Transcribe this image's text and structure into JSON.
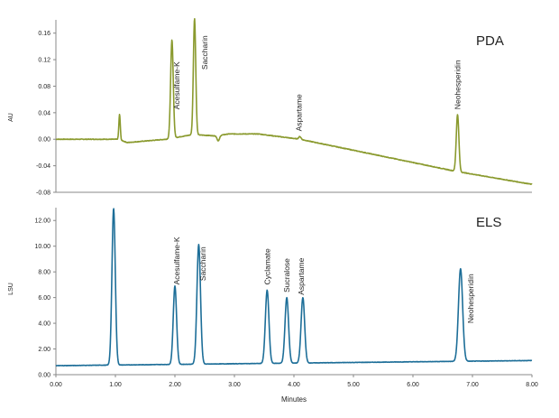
{
  "chart_data": [
    {
      "type": "line",
      "title": "PDA",
      "ylabel": "AU",
      "xlabel": "",
      "xlim": [
        0,
        8
      ],
      "ylim": [
        -0.08,
        0.18
      ],
      "yticks": [
        "-0.08",
        "-0.04",
        "0.00",
        "0.04",
        "0.08",
        "0.12",
        "0.16"
      ],
      "yticks_values": [
        -0.08,
        -0.04,
        0.0,
        0.04,
        0.08,
        0.12,
        0.16
      ],
      "grid": false,
      "color": "#8a9a2e",
      "baseline": [
        [
          0.0,
          0.0
        ],
        [
          1.05,
          0.0
        ],
        [
          1.2,
          -0.005
        ],
        [
          1.85,
          0.0
        ],
        [
          2.3,
          0.007
        ],
        [
          2.7,
          0.005
        ],
        [
          2.9,
          0.008
        ],
        [
          3.4,
          0.008
        ],
        [
          4.1,
          0.0
        ],
        [
          6.7,
          -0.048
        ],
        [
          8.0,
          -0.068
        ]
      ],
      "peaks": [
        {
          "x": 1.07,
          "height": 0.038,
          "width": 0.012
        },
        {
          "x": 1.95,
          "height": 0.148,
          "width": 0.022
        },
        {
          "x": 2.33,
          "height": 0.175,
          "width": 0.02
        },
        {
          "x": 2.73,
          "height": -0.008,
          "width": 0.02
        },
        {
          "x": 4.1,
          "height": 0.004,
          "width": 0.02
        },
        {
          "x": 6.75,
          "height": 0.086,
          "width": 0.022
        }
      ],
      "annotations": [
        {
          "label": "Acesulfame-K",
          "x": 2.03,
          "y": 0.045
        },
        {
          "label": "Saccharin",
          "x": 2.5,
          "y": 0.105
        },
        {
          "label": "Aspartame",
          "x": 4.08,
          "y": 0.012
        },
        {
          "label": "Neohesperidin",
          "x": 6.75,
          "y": 0.045
        }
      ]
    },
    {
      "type": "line",
      "title": "ELS",
      "ylabel": "LSU",
      "xlabel": "Minutes",
      "xlim": [
        0,
        8
      ],
      "ylim": [
        0,
        13
      ],
      "xticks": [
        "0.00",
        "1.00",
        "2.00",
        "3.00",
        "4.00",
        "5.00",
        "6.00",
        "7.00",
        "8.00"
      ],
      "xticks_values": [
        0,
        1,
        2,
        3,
        4,
        5,
        6,
        7,
        8
      ],
      "yticks": [
        "0.00",
        "2.00",
        "4.00",
        "6.00",
        "8.00",
        "10.00",
        "12.00"
      ],
      "yticks_values": [
        0,
        2,
        4,
        6,
        8,
        10,
        12
      ],
      "grid": false,
      "color": "#1d6e98",
      "baseline": [
        [
          0.0,
          0.7
        ],
        [
          8.0,
          1.1
        ]
      ],
      "peaks": [
        {
          "x": 0.97,
          "height": 12.2,
          "width": 0.028
        },
        {
          "x": 2.0,
          "height": 6.1,
          "width": 0.028
        },
        {
          "x": 2.4,
          "height": 9.3,
          "width": 0.03
        },
        {
          "x": 3.55,
          "height": 5.7,
          "width": 0.03
        },
        {
          "x": 3.88,
          "height": 5.1,
          "width": 0.03
        },
        {
          "x": 4.15,
          "height": 5.1,
          "width": 0.03
        },
        {
          "x": 6.8,
          "height": 7.2,
          "width": 0.035
        }
      ],
      "annotations": [
        {
          "label": "Acesulfame-K",
          "x": 2.03,
          "y": 7.0
        },
        {
          "label": "Saccharin",
          "x": 2.47,
          "y": 7.3
        },
        {
          "label": "Cyclamate",
          "x": 3.55,
          "y": 7.0
        },
        {
          "label": "Sucralose",
          "x": 3.88,
          "y": 6.4
        },
        {
          "label": "Aspartame",
          "x": 4.12,
          "y": 6.2
        },
        {
          "label": "Neohesperidin",
          "x": 6.97,
          "y": 4.0
        }
      ]
    }
  ]
}
